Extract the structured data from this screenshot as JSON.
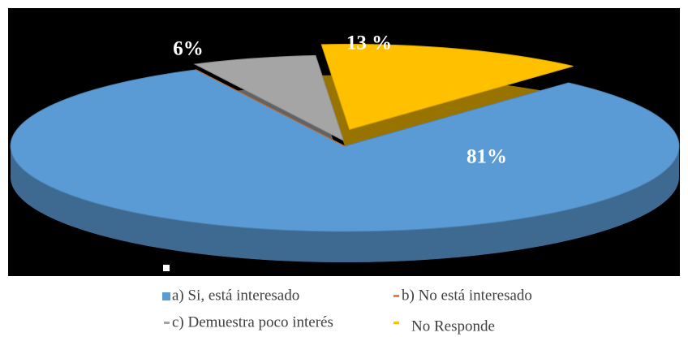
{
  "chart_data": {
    "type": "pie",
    "categories": [
      "a) Si, está interesado",
      "b) No está interesado",
      "c) Demuestra poco interés",
      "No Responde"
    ],
    "values": [
      81,
      0,
      6,
      13
    ],
    "value_labels": [
      "81%",
      null,
      "6%",
      "13 %"
    ],
    "colors": [
      "#5b9bd5",
      "#ed7d31",
      "#a5a5a5",
      "#ffc000"
    ],
    "legend": "bottom"
  }
}
